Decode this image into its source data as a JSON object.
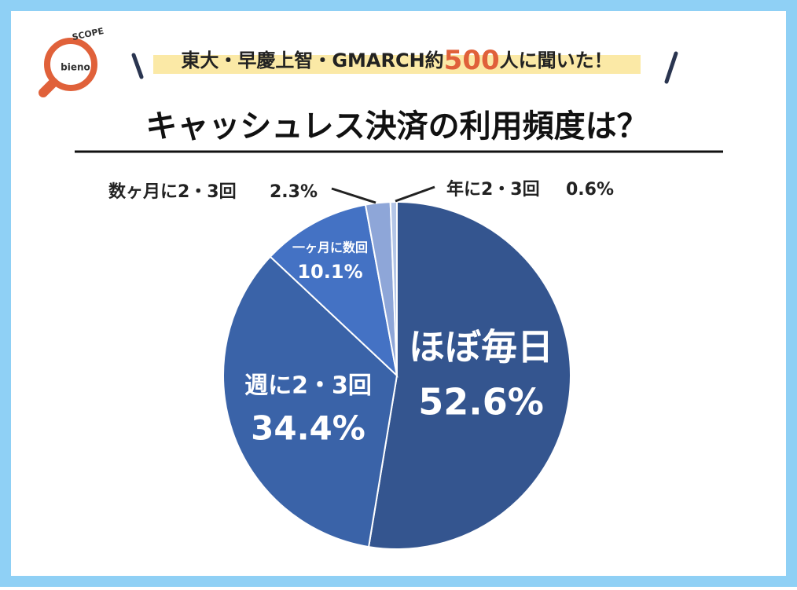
{
  "logo": {
    "top": "SCOPE",
    "name": "bieno"
  },
  "banner": {
    "before": "東大・早慶上智・GMARCH約",
    "number": "500",
    "after": "人に聞いた！"
  },
  "chart_data": {
    "type": "pie",
    "title": "キャッシュレス決済の利用頻度は？",
    "categories": [
      "ほぼ毎日",
      "週に2・3回",
      "一ヶ月に数回",
      "数ヶ月に2・3回",
      "年に2・3回"
    ],
    "values": [
      52.6,
      34.4,
      10.1,
      2.3,
      0.6
    ],
    "value_labels": [
      "52.6%",
      "34.4%",
      "10.1%",
      "2.3%",
      "0.6%"
    ],
    "colors": [
      "#34558f",
      "#3a63a8",
      "#4472c4",
      "#8ea6d8",
      "#b4c6e7"
    ]
  }
}
